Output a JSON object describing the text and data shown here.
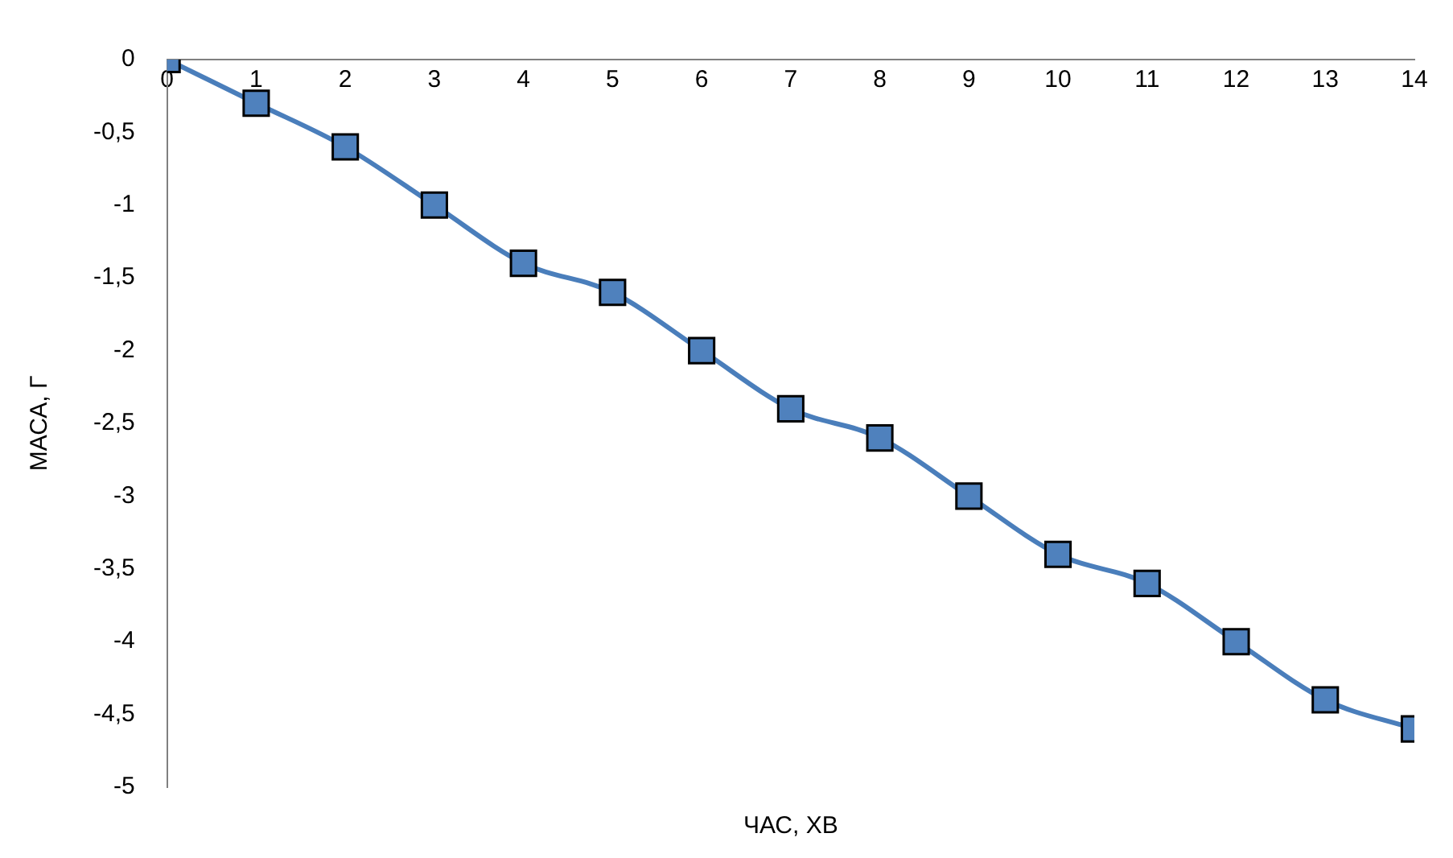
{
  "chart_data": {
    "type": "line",
    "xlabel": "ЧАС, ХВ",
    "ylabel": "МАСА, Г",
    "x": [
      0,
      1,
      2,
      3,
      4,
      5,
      6,
      7,
      8,
      9,
      10,
      11,
      12,
      13,
      14
    ],
    "series": [
      {
        "color": "#4a7ebb",
        "values": [
          0,
          -0.3,
          -0.6,
          -1,
          -1.4,
          -1.6,
          -2,
          -2.4,
          -2.6,
          -3,
          -3.4,
          -3.6,
          -4,
          -4.4,
          -4.6
        ]
      }
    ],
    "xlim": [
      0,
      14
    ],
    "xticks": [
      0,
      1,
      2,
      3,
      4,
      5,
      6,
      7,
      8,
      9,
      10,
      11,
      12,
      13,
      14
    ],
    "ylim": [
      -5,
      0
    ],
    "yticks": [
      {
        "value": -5,
        "label": "-5"
      },
      {
        "value": -4.5,
        "label": "-4,5"
      },
      {
        "value": -4,
        "label": "-4"
      },
      {
        "value": -3.5,
        "label": "-3,5"
      },
      {
        "value": -3,
        "label": "-3"
      },
      {
        "value": -2.5,
        "label": "-2,5"
      },
      {
        "value": -2,
        "label": "-2"
      },
      {
        "value": -1.5,
        "label": "-1,5"
      },
      {
        "value": -1,
        "label": "-1"
      },
      {
        "value": -0.5,
        "label": "-0,5"
      },
      0
    ],
    "grid": false,
    "legend": false,
    "marker": "square",
    "line_style": "solid"
  }
}
